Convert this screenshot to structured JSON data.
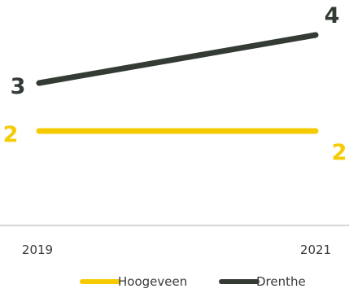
{
  "chart_data": {
    "type": "line",
    "x": [
      "2019",
      "2021"
    ],
    "series": [
      {
        "name": "Hoogeveen",
        "values": [
          2,
          2
        ],
        "color": "#F5CB00",
        "labels": [
          "2",
          "2"
        ]
      },
      {
        "name": "Drenthe",
        "values": [
          3,
          4
        ],
        "color": "#343B35",
        "labels": [
          "3",
          "4"
        ]
      }
    ],
    "title": "",
    "xlabel": "",
    "ylabel": "",
    "grid": false,
    "legend_placement": "bottom-right",
    "axis_line_color": "#C8C8C8"
  }
}
